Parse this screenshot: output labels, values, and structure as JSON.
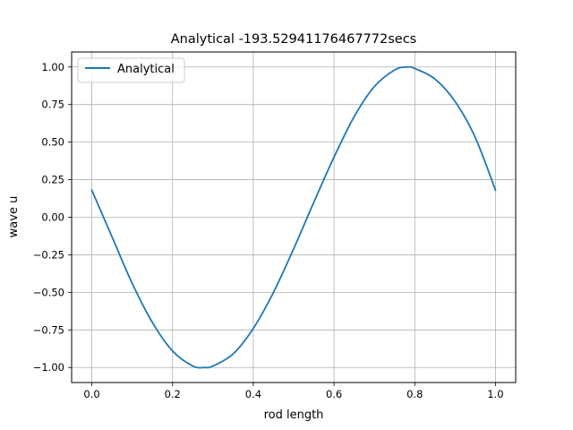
{
  "chart_data": {
    "type": "line",
    "title": "Analytical -193.52941176467772secs",
    "xlabel": "rod length",
    "ylabel": "wave u",
    "xlim": [
      -0.05,
      1.05
    ],
    "ylim": [
      -1.1,
      1.1
    ],
    "xticks": [
      0.0,
      0.2,
      0.4,
      0.6,
      0.8,
      1.0
    ],
    "xtick_labels": [
      "0.0",
      "0.2",
      "0.4",
      "0.6",
      "0.8",
      "1.0"
    ],
    "yticks": [
      -1.0,
      -0.75,
      -0.5,
      -0.25,
      0.0,
      0.25,
      0.5,
      0.75,
      1.0
    ],
    "ytick_labels": [
      "−1.00",
      "−0.75",
      "−0.50",
      "−0.25",
      "0.00",
      "0.25",
      "0.50",
      "0.75",
      "1.00"
    ],
    "grid": true,
    "legend_position": "upper-left",
    "series": [
      {
        "name": "Analytical",
        "color": "#1f77b4",
        "x": [
          0.0,
          0.05,
          0.1,
          0.15,
          0.2,
          0.25,
          0.28,
          0.3,
          0.35,
          0.4,
          0.45,
          0.5,
          0.55,
          0.6,
          0.65,
          0.7,
          0.75,
          0.78,
          0.8,
          0.85,
          0.9,
          0.95,
          1.0
        ],
        "y": [
          0.18,
          -0.13,
          -0.44,
          -0.7,
          -0.89,
          -0.99,
          -1.0,
          -0.99,
          -0.91,
          -0.74,
          -0.5,
          -0.21,
          0.1,
          0.4,
          0.67,
          0.87,
          0.98,
          1.0,
          0.99,
          0.92,
          0.77,
          0.53,
          0.18
        ]
      }
    ]
  }
}
